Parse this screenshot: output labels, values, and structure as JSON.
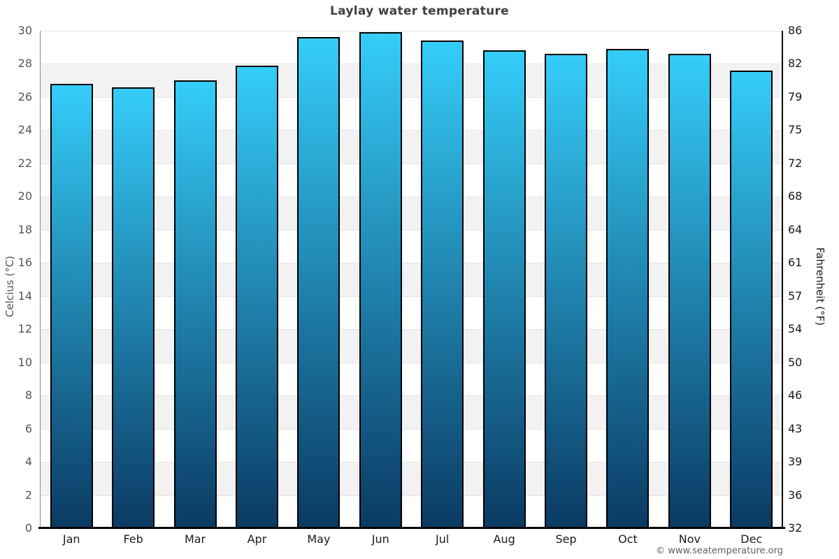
{
  "title": "Laylay water temperature",
  "watermark": "© www.seatemperature.org",
  "chart_data": {
    "type": "bar",
    "title": "Laylay water temperature",
    "categories": [
      "Jan",
      "Feb",
      "Mar",
      "Apr",
      "May",
      "Jun",
      "Jul",
      "Aug",
      "Sep",
      "Oct",
      "Nov",
      "Dec"
    ],
    "values": [
      26.8,
      26.6,
      27.0,
      27.9,
      29.6,
      29.9,
      29.4,
      28.8,
      28.6,
      28.9,
      28.6,
      27.6
    ],
    "series_name": "Water temperature (°C)",
    "xlabel": "",
    "ylabel_left": "Celcius (°C)",
    "ylabel_right": "Fahrenheit (°F)",
    "ylim_celsius": [
      0,
      30
    ],
    "yticks_celsius": [
      30,
      28,
      26,
      24,
      22,
      20,
      18,
      16,
      14,
      12,
      10,
      8,
      6,
      4,
      2,
      0
    ],
    "yticks_fahrenheit": [
      86,
      82,
      79,
      75,
      72,
      68,
      64,
      61,
      57,
      54,
      50,
      46,
      43,
      39,
      36,
      32
    ],
    "legend": "none",
    "grid": "alternating horizontal bands every 2°C",
    "colors": {
      "bar_gradient_top": "#35cdf9",
      "bar_gradient_bottom": "#0a3a63",
      "bar_border": "#000000",
      "band_gray": "#f2f2f2",
      "band_white": "#ffffff",
      "tick_left": "#555555",
      "tick_right": "#1a1a1a",
      "title_text": "#404040"
    }
  }
}
